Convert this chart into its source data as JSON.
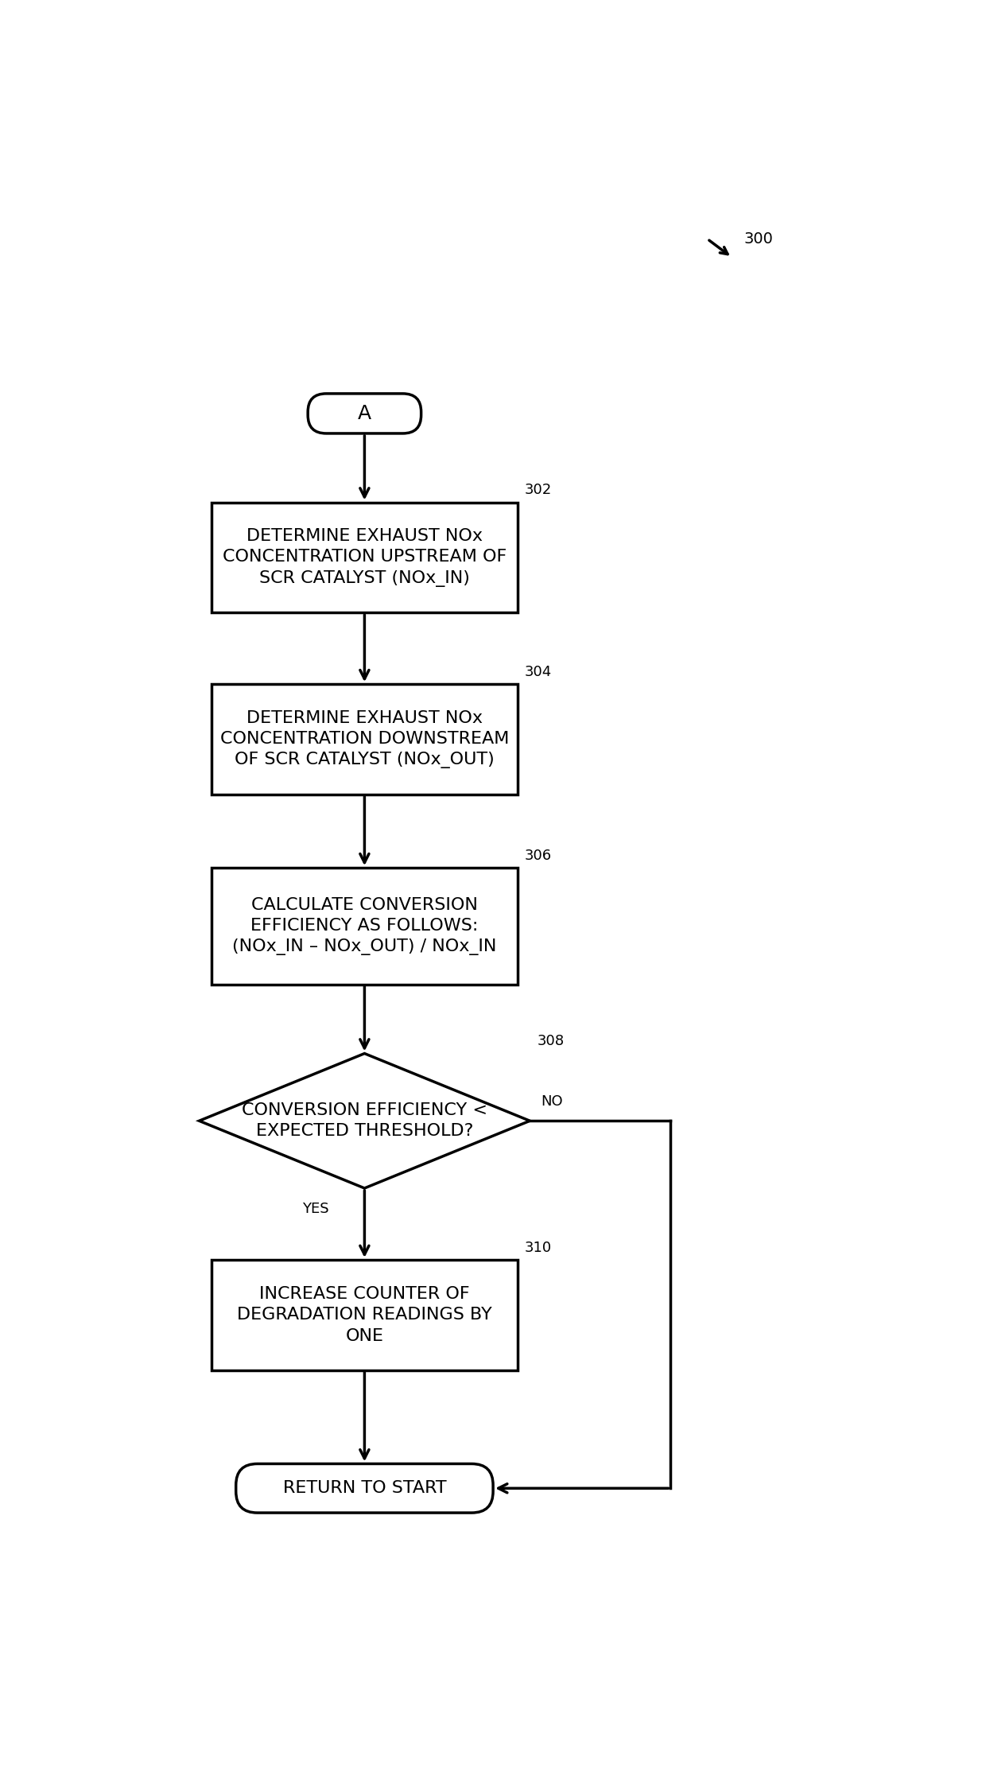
{
  "bg_color": "#ffffff",
  "line_color": "#000000",
  "text_color": "#000000",
  "fig_width": 12.4,
  "fig_height": 22.28,
  "label_300": "300",
  "label_A": "A",
  "label_302": "302",
  "box_302": "DETERMINE EXHAUST NOx\nCONCENTRATION UPSTREAM OF\nSCR CATALYST (NOx_IN)",
  "label_304": "304",
  "box_304": "DETERMINE EXHAUST NOx\nCONCENTRATION DOWNSTREAM\nOF SCR CATALYST (NOx_OUT)",
  "label_306": "306",
  "box_306": "CALCULATE CONVERSION\nEFFICIENCY AS FOLLOWS:\n(NOx_IN – NOx_OUT) / NOx_IN",
  "label_308": "308",
  "diamond_308": "CONVERSION EFFICIENCY <\nEXPECTED THRESHOLD?",
  "label_yes": "YES",
  "label_no": "NO",
  "label_310": "310",
  "box_310": "INCREASE COUNTER OF\nDEGRADATION READINGS BY\nONE",
  "box_return": "RETURN TO START",
  "font_size_box": 16,
  "font_size_label": 13,
  "font_size_A": 18,
  "lw": 2.5
}
